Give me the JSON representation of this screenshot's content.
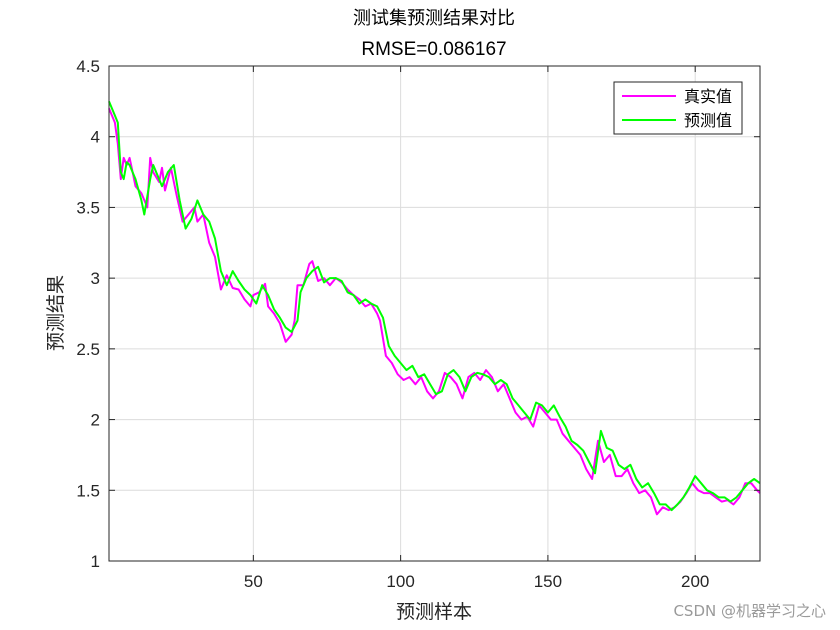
{
  "chart_data": {
    "type": "line",
    "title": "测试集预测结果对比",
    "subtitle": "RMSE=0.086167",
    "xlabel": "预测样本",
    "ylabel": "预测结果",
    "xlim": [
      1,
      222
    ],
    "ylim": [
      1,
      4.5
    ],
    "xticks": [
      50,
      100,
      150,
      200
    ],
    "yticks": [
      1,
      1.5,
      2,
      2.5,
      3,
      3.5,
      4,
      4.5
    ],
    "grid": true,
    "legend_position": "top-right",
    "series": [
      {
        "name": "真实值",
        "color": "#FF00FF",
        "anchors": [
          [
            1,
            4.2
          ],
          [
            3,
            4.1
          ],
          [
            4,
            3.95
          ],
          [
            5,
            3.7
          ],
          [
            6,
            3.85
          ],
          [
            7,
            3.8
          ],
          [
            8,
            3.85
          ],
          [
            9,
            3.75
          ],
          [
            10,
            3.65
          ],
          [
            12,
            3.6
          ],
          [
            14,
            3.5
          ],
          [
            15,
            3.85
          ],
          [
            16,
            3.75
          ],
          [
            18,
            3.68
          ],
          [
            19,
            3.78
          ],
          [
            20,
            3.62
          ],
          [
            22,
            3.78
          ],
          [
            24,
            3.58
          ],
          [
            26,
            3.4
          ],
          [
            28,
            3.45
          ],
          [
            30,
            3.5
          ],
          [
            31,
            3.4
          ],
          [
            33,
            3.45
          ],
          [
            35,
            3.25
          ],
          [
            37,
            3.15
          ],
          [
            39,
            2.92
          ],
          [
            41,
            3.02
          ],
          [
            43,
            2.93
          ],
          [
            45,
            2.92
          ],
          [
            47,
            2.85
          ],
          [
            49,
            2.8
          ],
          [
            50,
            2.88
          ],
          [
            52,
            2.9
          ],
          [
            54,
            2.96
          ],
          [
            55,
            2.8
          ],
          [
            57,
            2.75
          ],
          [
            59,
            2.68
          ],
          [
            61,
            2.55
          ],
          [
            63,
            2.6
          ],
          [
            64,
            2.7
          ],
          [
            65,
            2.95
          ],
          [
            67,
            2.95
          ],
          [
            69,
            3.1
          ],
          [
            70,
            3.12
          ],
          [
            72,
            2.98
          ],
          [
            74,
            3.0
          ],
          [
            76,
            2.95
          ],
          [
            78,
            3.0
          ],
          [
            80,
            2.97
          ],
          [
            82,
            2.92
          ],
          [
            84,
            2.88
          ],
          [
            86,
            2.85
          ],
          [
            88,
            2.8
          ],
          [
            90,
            2.82
          ],
          [
            92,
            2.75
          ],
          [
            93,
            2.7
          ],
          [
            95,
            2.45
          ],
          [
            97,
            2.4
          ],
          [
            99,
            2.32
          ],
          [
            101,
            2.28
          ],
          [
            103,
            2.3
          ],
          [
            105,
            2.25
          ],
          [
            107,
            2.3
          ],
          [
            109,
            2.2
          ],
          [
            111,
            2.15
          ],
          [
            113,
            2.2
          ],
          [
            115,
            2.33
          ],
          [
            117,
            2.3
          ],
          [
            119,
            2.25
          ],
          [
            121,
            2.15
          ],
          [
            123,
            2.3
          ],
          [
            125,
            2.33
          ],
          [
            127,
            2.28
          ],
          [
            129,
            2.35
          ],
          [
            131,
            2.3
          ],
          [
            133,
            2.2
          ],
          [
            135,
            2.25
          ],
          [
            137,
            2.15
          ],
          [
            139,
            2.05
          ],
          [
            141,
            2.0
          ],
          [
            143,
            2.02
          ],
          [
            145,
            1.95
          ],
          [
            147,
            2.1
          ],
          [
            149,
            2.05
          ],
          [
            151,
            2.0
          ],
          [
            153,
            2.0
          ],
          [
            155,
            1.9
          ],
          [
            157,
            1.85
          ],
          [
            159,
            1.8
          ],
          [
            161,
            1.75
          ],
          [
            163,
            1.65
          ],
          [
            165,
            1.58
          ],
          [
            167,
            1.85
          ],
          [
            169,
            1.7
          ],
          [
            171,
            1.75
          ],
          [
            173,
            1.6
          ],
          [
            175,
            1.6
          ],
          [
            177,
            1.65
          ],
          [
            179,
            1.55
          ],
          [
            181,
            1.48
          ],
          [
            183,
            1.5
          ],
          [
            185,
            1.45
          ],
          [
            187,
            1.33
          ],
          [
            189,
            1.38
          ],
          [
            191,
            1.36
          ],
          [
            193,
            1.38
          ],
          [
            195,
            1.42
          ],
          [
            197,
            1.48
          ],
          [
            199,
            1.55
          ],
          [
            201,
            1.5
          ],
          [
            203,
            1.48
          ],
          [
            205,
            1.48
          ],
          [
            207,
            1.45
          ],
          [
            209,
            1.42
          ],
          [
            211,
            1.43
          ],
          [
            213,
            1.4
          ],
          [
            215,
            1.45
          ],
          [
            217,
            1.55
          ],
          [
            219,
            1.55
          ],
          [
            221,
            1.5
          ],
          [
            222,
            1.48
          ]
        ]
      },
      {
        "name": "预测值",
        "color": "#00FF00",
        "anchors": [
          [
            1,
            4.25
          ],
          [
            3,
            4.15
          ],
          [
            4,
            4.1
          ],
          [
            5,
            3.75
          ],
          [
            6,
            3.7
          ],
          [
            7,
            3.82
          ],
          [
            8,
            3.8
          ],
          [
            10,
            3.7
          ],
          [
            12,
            3.55
          ],
          [
            13,
            3.45
          ],
          [
            15,
            3.7
          ],
          [
            16,
            3.8
          ],
          [
            18,
            3.7
          ],
          [
            19,
            3.65
          ],
          [
            21,
            3.75
          ],
          [
            23,
            3.8
          ],
          [
            25,
            3.55
          ],
          [
            27,
            3.35
          ],
          [
            29,
            3.42
          ],
          [
            31,
            3.55
          ],
          [
            33,
            3.45
          ],
          [
            35,
            3.4
          ],
          [
            37,
            3.28
          ],
          [
            39,
            3.05
          ],
          [
            41,
            2.95
          ],
          [
            43,
            3.05
          ],
          [
            45,
            2.98
          ],
          [
            47,
            2.92
          ],
          [
            49,
            2.88
          ],
          [
            51,
            2.82
          ],
          [
            53,
            2.95
          ],
          [
            55,
            2.88
          ],
          [
            57,
            2.78
          ],
          [
            59,
            2.72
          ],
          [
            61,
            2.65
          ],
          [
            63,
            2.62
          ],
          [
            65,
            2.7
          ],
          [
            66,
            2.9
          ],
          [
            68,
            3.0
          ],
          [
            70,
            3.05
          ],
          [
            72,
            3.08
          ],
          [
            74,
            2.97
          ],
          [
            76,
            3.0
          ],
          [
            78,
            3.0
          ],
          [
            80,
            2.98
          ],
          [
            82,
            2.9
          ],
          [
            84,
            2.88
          ],
          [
            86,
            2.82
          ],
          [
            88,
            2.85
          ],
          [
            90,
            2.82
          ],
          [
            92,
            2.8
          ],
          [
            94,
            2.72
          ],
          [
            96,
            2.52
          ],
          [
            98,
            2.45
          ],
          [
            100,
            2.4
          ],
          [
            102,
            2.35
          ],
          [
            104,
            2.38
          ],
          [
            106,
            2.3
          ],
          [
            108,
            2.32
          ],
          [
            110,
            2.25
          ],
          [
            112,
            2.18
          ],
          [
            114,
            2.2
          ],
          [
            116,
            2.32
          ],
          [
            118,
            2.35
          ],
          [
            120,
            2.3
          ],
          [
            122,
            2.2
          ],
          [
            124,
            2.3
          ],
          [
            126,
            2.33
          ],
          [
            128,
            2.32
          ],
          [
            130,
            2.3
          ],
          [
            132,
            2.25
          ],
          [
            134,
            2.28
          ],
          [
            136,
            2.25
          ],
          [
            138,
            2.15
          ],
          [
            140,
            2.1
          ],
          [
            142,
            2.05
          ],
          [
            144,
            2.0
          ],
          [
            146,
            2.12
          ],
          [
            148,
            2.1
          ],
          [
            150,
            2.05
          ],
          [
            152,
            2.1
          ],
          [
            154,
            2.02
          ],
          [
            156,
            1.95
          ],
          [
            158,
            1.85
          ],
          [
            160,
            1.82
          ],
          [
            162,
            1.78
          ],
          [
            164,
            1.7
          ],
          [
            166,
            1.62
          ],
          [
            168,
            1.92
          ],
          [
            170,
            1.8
          ],
          [
            172,
            1.78
          ],
          [
            174,
            1.68
          ],
          [
            176,
            1.65
          ],
          [
            178,
            1.68
          ],
          [
            180,
            1.58
          ],
          [
            182,
            1.52
          ],
          [
            184,
            1.55
          ],
          [
            186,
            1.48
          ],
          [
            188,
            1.4
          ],
          [
            190,
            1.4
          ],
          [
            192,
            1.36
          ],
          [
            194,
            1.4
          ],
          [
            196,
            1.45
          ],
          [
            198,
            1.52
          ],
          [
            200,
            1.6
          ],
          [
            202,
            1.55
          ],
          [
            204,
            1.5
          ],
          [
            206,
            1.48
          ],
          [
            208,
            1.45
          ],
          [
            210,
            1.45
          ],
          [
            212,
            1.42
          ],
          [
            214,
            1.45
          ],
          [
            216,
            1.5
          ],
          [
            218,
            1.55
          ],
          [
            220,
            1.58
          ],
          [
            222,
            1.55
          ]
        ]
      }
    ]
  },
  "watermark": "CSDN @机器学习之心"
}
